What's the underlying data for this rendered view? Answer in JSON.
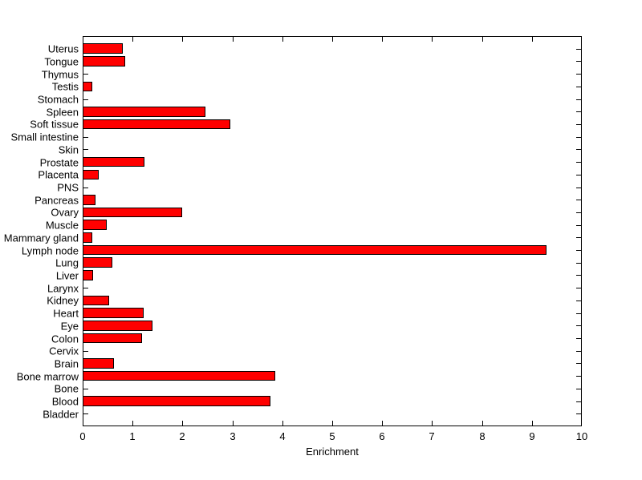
{
  "chart_data": {
    "type": "bar",
    "orientation": "horizontal",
    "title": "",
    "xlabel": "Enrichment",
    "ylabel": "",
    "xlim": [
      0,
      10
    ],
    "x_ticks": [
      0,
      1,
      2,
      3,
      4,
      5,
      6,
      7,
      8,
      9,
      10
    ],
    "grid": false,
    "legend": "none",
    "categories": [
      "Uterus",
      "Tongue",
      "Thymus",
      "Testis",
      "Stomach",
      "Spleen",
      "Soft tissue",
      "Small intestine",
      "Skin",
      "Prostate",
      "Placenta",
      "PNS",
      "Pancreas",
      "Ovary",
      "Muscle",
      "Mammary gland",
      "Lymph node",
      "Lung",
      "Liver",
      "Larynx",
      "Kidney",
      "Heart",
      "Eye",
      "Colon",
      "Cervix",
      "Brain",
      "Bone marrow",
      "Bone",
      "Blood",
      "Bladder"
    ],
    "values": [
      0.78,
      0.84,
      0,
      0.17,
      0,
      2.44,
      2.95,
      0,
      0,
      1.22,
      0.31,
      0,
      0.24,
      1.97,
      0.47,
      0.17,
      9.28,
      0.58,
      0.2,
      0,
      0.51,
      1.2,
      1.38,
      1.18,
      0,
      0.61,
      3.85,
      0,
      3.75,
      0
    ],
    "colors": {
      "bar_fill": "#ff0000",
      "bar_edge": "#000000",
      "axis": "#000000",
      "background": "#ffffff",
      "text": "#000000"
    }
  }
}
